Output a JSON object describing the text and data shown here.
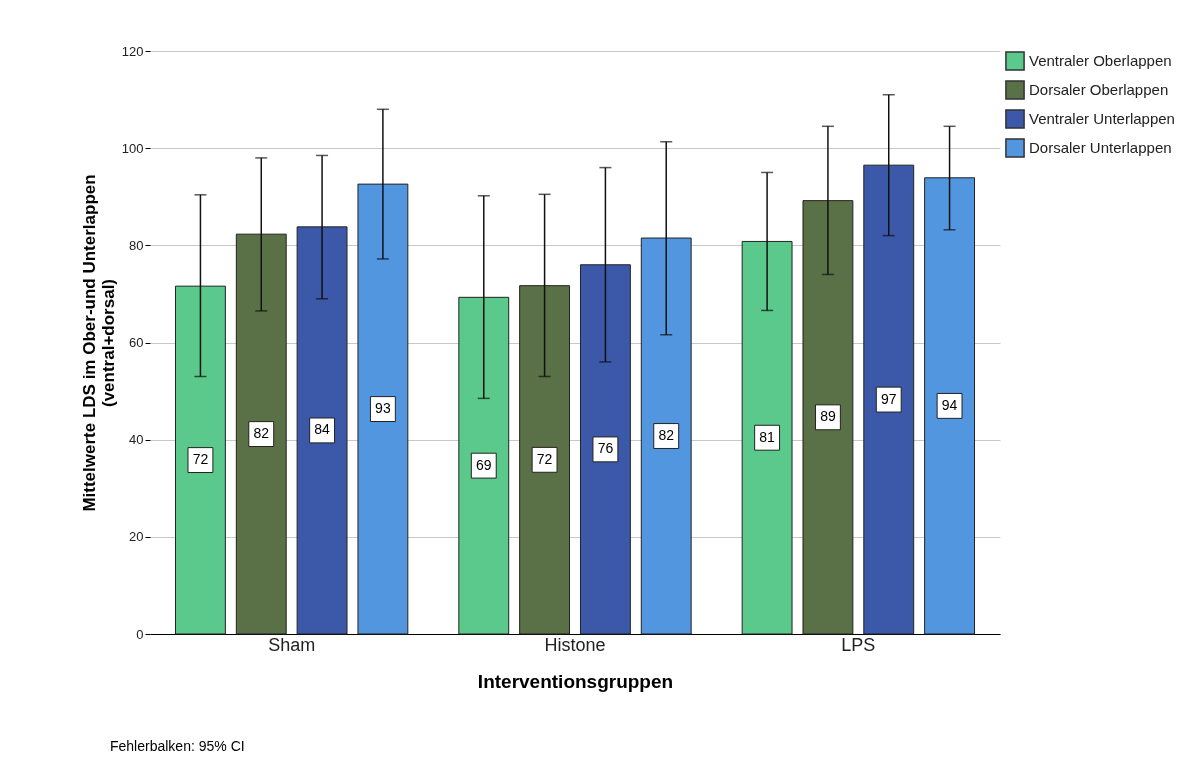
{
  "chart_data": {
    "type": "bar",
    "xlabel": "Interventionsgruppen",
    "ylabel": "Mittelwerte LDS im Ober-und Unterlappen\n(ventral+dorsal)",
    "categories": [
      "Sham",
      "Histone",
      "LPS"
    ],
    "series": [
      {
        "name": "Ventraler Oberlappen",
        "color": "#5bc98b",
        "values": [
          71.6,
          69.3,
          80.8
        ],
        "value_labels": [
          "72",
          "69",
          "81"
        ],
        "errors": [
          [
            53,
            90.4
          ],
          [
            48.5,
            90.2
          ],
          [
            66.6,
            95
          ]
        ]
      },
      {
        "name": "Dorsaler Oberlappen",
        "color": "#5a7046",
        "values": [
          82.3,
          71.7,
          89.2
        ],
        "value_labels": [
          "82",
          "72",
          "89"
        ],
        "errors": [
          [
            66.5,
            98
          ],
          [
            53,
            90.5
          ],
          [
            74,
            104.5
          ]
        ]
      },
      {
        "name": "Ventraler Unterlappen",
        "color": "#3c58a8",
        "values": [
          83.8,
          76,
          96.5
        ],
        "value_labels": [
          "84",
          "76",
          "97"
        ],
        "errors": [
          [
            69,
            98.5
          ],
          [
            56,
            96
          ],
          [
            82,
            111
          ]
        ]
      },
      {
        "name": "Dorsaler Unterlappen",
        "color": "#5296e0",
        "values": [
          92.6,
          81.5,
          93.9
        ],
        "value_labels": [
          "93",
          "82",
          "94"
        ],
        "errors": [
          [
            77.2,
            108
          ],
          [
            61.6,
            101.3
          ],
          [
            83.2,
            104.5
          ]
        ]
      }
    ],
    "ylim": [
      0,
      120
    ],
    "yticks": [
      0,
      20,
      40,
      60,
      80,
      100,
      120
    ],
    "grid": "y",
    "legend": "top right",
    "annotations": [
      "Fehlerbalken: 95% CI"
    ]
  }
}
